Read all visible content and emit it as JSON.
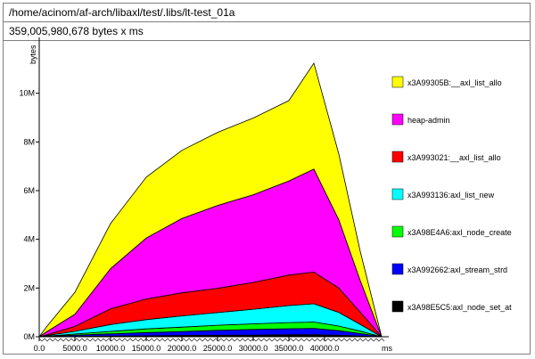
{
  "header": {
    "path": "/home/acinom/af-arch/libaxl/test/.libs/lt-test_01a",
    "summary": "359,005,980,678 bytes x ms"
  },
  "chart_data": {
    "type": "area",
    "stacked": true,
    "title": "",
    "xlabel": "ms",
    "ylabel": "bytes",
    "xlim": [
      0,
      48500
    ],
    "ylim": [
      0,
      12000000
    ],
    "x_ticks": [
      0,
      5000,
      10000,
      15000,
      20000,
      25000,
      30000,
      35000,
      40000
    ],
    "x_tick_labels": [
      "0.0",
      "5000.0",
      "10000.0",
      "15000.0",
      "20000.0",
      "25000.0",
      "30000.0",
      "35000.0",
      "40000.0"
    ],
    "y_ticks": [
      0,
      2000000,
      4000000,
      6000000,
      8000000,
      10000000
    ],
    "y_tick_labels": [
      "0M",
      "2M",
      "4M",
      "6M",
      "8M",
      "10M"
    ],
    "legend_position": "right",
    "x": [
      0,
      1000,
      5000,
      10000,
      15000,
      20000,
      25000,
      30000,
      35000,
      38500,
      42000,
      45000,
      48000
    ],
    "series": [
      {
        "name": "x3A98E5C5:axl_node_set_at",
        "color": "#000000",
        "values": [
          0,
          3000,
          15000,
          30000,
          42000,
          55000,
          62000,
          70000,
          80000,
          85000,
          60000,
          30000,
          0
        ]
      },
      {
        "name": "x3A992662:axl_stream_strd",
        "color": "#0000ff",
        "values": [
          0,
          10000,
          50000,
          90000,
          130000,
          160000,
          200000,
          230000,
          250000,
          260000,
          190000,
          100000,
          0
        ]
      },
      {
        "name": "x3A98E4A6:axl_node_create",
        "color": "#00ff00",
        "values": [
          0,
          10000,
          50000,
          100000,
          150000,
          180000,
          210000,
          230000,
          250000,
          260000,
          190000,
          100000,
          0
        ]
      },
      {
        "name": "x3A993136:axl_list_new",
        "color": "#00ffff",
        "values": [
          0,
          25000,
          110000,
          280000,
          380000,
          460000,
          520000,
          600000,
          700000,
          750000,
          560000,
          280000,
          0
        ]
      },
      {
        "name": "x3A993021:__axl_list_allo",
        "color": "#ff0000",
        "values": [
          0,
          30000,
          200000,
          650000,
          850000,
          950000,
          1000000,
          1100000,
          1250000,
          1300000,
          1000000,
          500000,
          0
        ]
      },
      {
        "name": "heap-admin",
        "color": "#ff00ff",
        "values": [
          0,
          120000,
          500000,
          1650000,
          2500000,
          3050000,
          3400000,
          3600000,
          3870000,
          4230000,
          2800000,
          1300000,
          0
        ]
      },
      {
        "name": "x3A99305B:__axl_list_allo",
        "color": "#ffff00",
        "values": [
          0,
          200000,
          900000,
          1850000,
          2500000,
          2800000,
          3000000,
          3150000,
          3300000,
          4350000,
          2700000,
          1200000,
          0
        ]
      }
    ],
    "legend_order": [
      "x3A99305B:__axl_list_allo",
      "heap-admin",
      "x3A993021:__axl_list_allo",
      "x3A993136:axl_list_new",
      "x3A98E4A6:axl_node_create",
      "x3A992662:axl_stream_strd",
      "x3A98E5C5:axl_node_set_at"
    ]
  }
}
